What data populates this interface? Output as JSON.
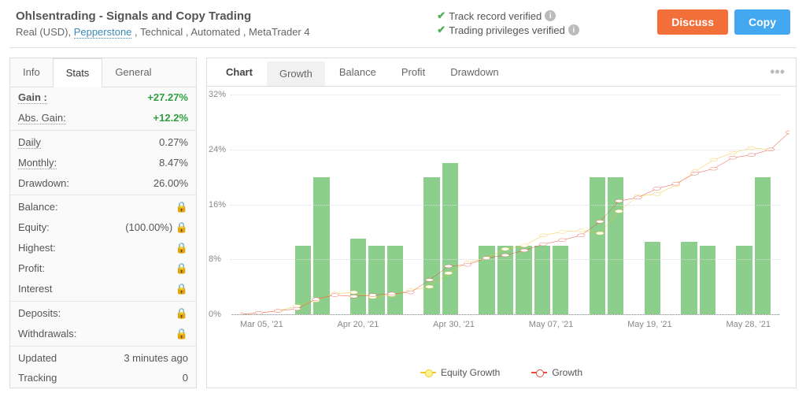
{
  "header": {
    "title": "Ohlsentrading - Signals and Copy Trading",
    "subtitle_prefix": "Real (USD), ",
    "broker": "Pepperstone",
    "subtitle_suffix": " , Technical , Automated , MetaTrader 4",
    "verified1": "Track record verified",
    "verified2": "Trading privileges verified",
    "discuss": "Discuss",
    "copy": "Copy"
  },
  "sidebar": {
    "tabs": [
      "Info",
      "Stats",
      "General"
    ],
    "active_tab": 1,
    "rows": [
      {
        "label": "Gain :",
        "value": "+27.27%",
        "green": true,
        "bold": true,
        "dotted": true
      },
      {
        "label": "Abs. Gain:",
        "value": "+12.2%",
        "green": true,
        "dotted": true
      },
      {
        "divider": true
      },
      {
        "label": "Daily",
        "value": "0.27%",
        "dotted": true
      },
      {
        "label": "Monthly:",
        "value": "8.47%",
        "dotted": true
      },
      {
        "label": "Drawdown:",
        "value": "26.00%"
      },
      {
        "divider": true
      },
      {
        "label": "Balance:",
        "lock": true
      },
      {
        "label": "Equity:",
        "value": "(100.00%)",
        "lock": true
      },
      {
        "label": "Highest:",
        "lock": true
      },
      {
        "label": "Profit:",
        "lock": true
      },
      {
        "label": "Interest",
        "lock": true
      },
      {
        "divider": true
      },
      {
        "label": "Deposits:",
        "lock": true
      },
      {
        "label": "Withdrawals:",
        "lock": true
      },
      {
        "divider": true
      },
      {
        "label": "Updated",
        "value": "3 minutes ago"
      },
      {
        "label": "Tracking",
        "value": "0"
      }
    ]
  },
  "chart": {
    "tabs": [
      "Chart",
      "Growth",
      "Balance",
      "Profit",
      "Drawdown"
    ],
    "active_tab": 1,
    "y_max": 32,
    "y_ticks": [
      0,
      8,
      16,
      24,
      32
    ],
    "x_labels": [
      "Mar 05, '21",
      "Apr 20, '21",
      "Apr 30, '21",
      "May 07, '21",
      "May 19, '21",
      "May 28, '21"
    ],
    "bar_color": "#8ccf8c",
    "bars": [
      0,
      0,
      0,
      10,
      20,
      0,
      11,
      10,
      10,
      0,
      20,
      22,
      0,
      10,
      10,
      10,
      10,
      10,
      0,
      20,
      20,
      0,
      10.5,
      0,
      10.5,
      10,
      0,
      10,
      20
    ],
    "growth_color": "#e74c3c",
    "equity_color": "#f4c430",
    "growth": [
      0,
      0.2,
      0.5,
      0.8,
      2.2,
      2.8,
      2.6,
      2.8,
      3.0,
      3.2,
      5.0,
      7.0,
      7.2,
      8.2,
      8.6,
      9.3,
      10.2,
      10.8,
      11.5,
      13.5,
      16.5,
      17.0,
      18.3,
      19.0,
      20.5,
      21.2,
      22.8,
      23.2,
      24.0,
      26.5
    ],
    "equity": [
      0,
      0.2,
      0.5,
      1.2,
      2.0,
      3.0,
      3.2,
      2.5,
      2.8,
      3.5,
      4.0,
      6.0,
      7.5,
      8.2,
      9.5,
      10.0,
      11.5,
      12.0,
      12.2,
      11.8,
      15.0,
      17.2,
      17.5,
      18.8,
      20.8,
      22.5,
      23.5,
      24.2,
      24.0,
      26.5
    ],
    "legend": {
      "equity": "Equity Growth",
      "growth": "Growth"
    }
  }
}
